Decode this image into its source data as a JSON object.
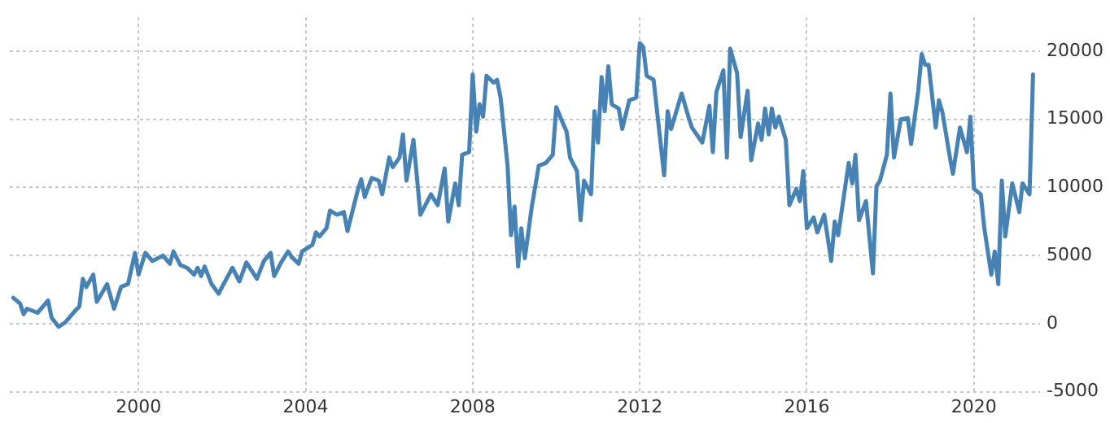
{
  "chart_data": {
    "type": "line",
    "x": [
      "1997-01",
      "1997-03",
      "1997-04",
      "1997-05",
      "1997-08",
      "1997-11",
      "1997-12",
      "1998-02",
      "1998-04",
      "1998-07",
      "1998-08",
      "1998-09",
      "1998-10",
      "1998-12",
      "1999-01",
      "1999-04",
      "1999-06",
      "1999-08",
      "1999-10",
      "1999-12",
      "2000-01",
      "2000-03",
      "2000-05",
      "2000-08",
      "2000-10",
      "2000-11",
      "2001-01",
      "2001-03",
      "2001-05",
      "2001-06",
      "2001-07",
      "2001-08",
      "2001-10",
      "2001-12",
      "2002-01",
      "2002-04",
      "2002-06",
      "2002-08",
      "2002-11",
      "2003-01",
      "2003-03",
      "2003-04",
      "2003-06",
      "2003-08",
      "2003-09",
      "2003-11",
      "2003-12",
      "2004-03",
      "2004-04",
      "2004-05",
      "2004-07",
      "2004-08",
      "2004-10",
      "2004-12",
      "2005-01",
      "2005-04",
      "2005-05",
      "2005-06",
      "2005-08",
      "2005-10",
      "2005-11",
      "2006-01",
      "2006-02",
      "2006-04",
      "2006-05",
      "2006-06",
      "2006-08",
      "2006-10",
      "2007-01",
      "2007-03",
      "2007-05",
      "2007-06",
      "2007-08",
      "2007-09",
      "2007-10",
      "2007-12",
      "2008-01",
      "2008-02",
      "2008-03",
      "2008-04",
      "2008-05",
      "2008-07",
      "2008-08",
      "2008-09",
      "2008-11",
      "2008-12",
      "2009-01",
      "2009-02",
      "2009-03",
      "2009-04",
      "2009-06",
      "2009-08",
      "2009-10",
      "2009-12",
      "2010-01",
      "2010-03",
      "2010-04",
      "2010-05",
      "2010-07",
      "2010-08",
      "2010-09",
      "2010-11",
      "2010-12",
      "2011-01",
      "2011-02",
      "2011-03",
      "2011-04",
      "2011-05",
      "2011-07",
      "2011-08",
      "2011-10",
      "2011-12",
      "2012-01",
      "2012-02",
      "2012-03",
      "2012-05",
      "2012-08",
      "2012-09",
      "2012-10",
      "2013-01",
      "2013-03",
      "2013-04",
      "2013-07",
      "2013-09",
      "2013-10",
      "2013-11",
      "2014-01",
      "2014-02",
      "2014-03",
      "2014-05",
      "2014-06",
      "2014-08",
      "2014-09",
      "2014-11",
      "2014-12",
      "2015-01",
      "2015-02",
      "2015-03",
      "2015-04",
      "2015-05",
      "2015-07",
      "2015-08",
      "2015-10",
      "2015-11",
      "2015-12",
      "2016-01",
      "2016-03",
      "2016-04",
      "2016-06",
      "2016-08",
      "2016-09",
      "2016-10",
      "2017-01",
      "2017-02",
      "2017-03",
      "2017-04",
      "2017-06",
      "2017-08",
      "2017-09",
      "2017-10",
      "2017-12",
      "2018-01",
      "2018-02",
      "2018-04",
      "2018-06",
      "2018-07",
      "2018-09",
      "2018-10",
      "2018-11",
      "2018-12",
      "2019-02",
      "2019-03",
      "2019-04",
      "2019-06",
      "2019-07",
      "2019-09",
      "2019-11",
      "2019-12",
      "2020-01",
      "2020-03",
      "2020-04",
      "2020-06",
      "2020-07",
      "2020-08",
      "2020-09",
      "2020-10",
      "2020-12",
      "2021-02",
      "2021-03",
      "2021-05",
      "2021-06"
    ],
    "series": [
      {
        "color": "#4682b4",
        "values": [
          1900,
          1480,
          700,
          1100,
          800,
          1700,
          450,
          -230,
          100,
          1000,
          1250,
          3300,
          2700,
          3600,
          1600,
          2900,
          1100,
          2700,
          2900,
          5200,
          3600,
          5200,
          4600,
          5000,
          4400,
          5300,
          4300,
          4100,
          3600,
          4100,
          3500,
          4200,
          2900,
          2200,
          2700,
          4100,
          3100,
          4500,
          3300,
          4600,
          5200,
          3500,
          4500,
          5300,
          4900,
          4400,
          5300,
          5800,
          6700,
          6400,
          7000,
          8300,
          8000,
          8200,
          6800,
          9800,
          10600,
          9300,
          10700,
          10500,
          9500,
          12200,
          11500,
          12200,
          13900,
          10500,
          13500,
          8000,
          9500,
          8700,
          11400,
          7500,
          10300,
          8700,
          12400,
          12600,
          18300,
          14100,
          16100,
          15200,
          18200,
          17700,
          17900,
          16600,
          11600,
          6500,
          8600,
          4200,
          7000,
          4800,
          8600,
          11600,
          11800,
          12400,
          15900,
          14700,
          14100,
          12200,
          11200,
          7600,
          10500,
          9500,
          15600,
          13300,
          18100,
          15600,
          18900,
          16100,
          15800,
          14300,
          16400,
          16600,
          20600,
          20300,
          18200,
          17900,
          10900,
          15600,
          14300,
          16900,
          15200,
          14400,
          13300,
          16000,
          12600,
          17000,
          18600,
          12200,
          20200,
          18400,
          13700,
          17100,
          12000,
          14700,
          13500,
          15800,
          13900,
          15800,
          14400,
          15200,
          13500,
          8700,
          9900,
          9000,
          11200,
          7000,
          7800,
          6700,
          8000,
          4600,
          7500,
          6500,
          11800,
          10300,
          12400,
          7600,
          9000,
          3700,
          10100,
          10500,
          12400,
          16900,
          12200,
          15000,
          15100,
          13200,
          17100,
          19800,
          19000,
          19000,
          14400,
          16400,
          15500,
          12400,
          11000,
          14400,
          12600,
          15200,
          9900,
          9500,
          7000,
          3600,
          5300,
          2900,
          10500,
          6400,
          10300,
          8200,
          10300,
          9500,
          18300
        ]
      }
    ],
    "xlim": [
      "1996-12",
      "2021-08"
    ],
    "xticks": [
      "2000",
      "2004",
      "2008",
      "2012",
      "2016",
      "2020"
    ],
    "ylim": [
      -5000,
      22500
    ],
    "yticks": [
      -5000,
      0,
      5000,
      10000,
      15000,
      20000
    ],
    "grid": true,
    "legend": false,
    "marker": "none",
    "line_style": "solid"
  }
}
